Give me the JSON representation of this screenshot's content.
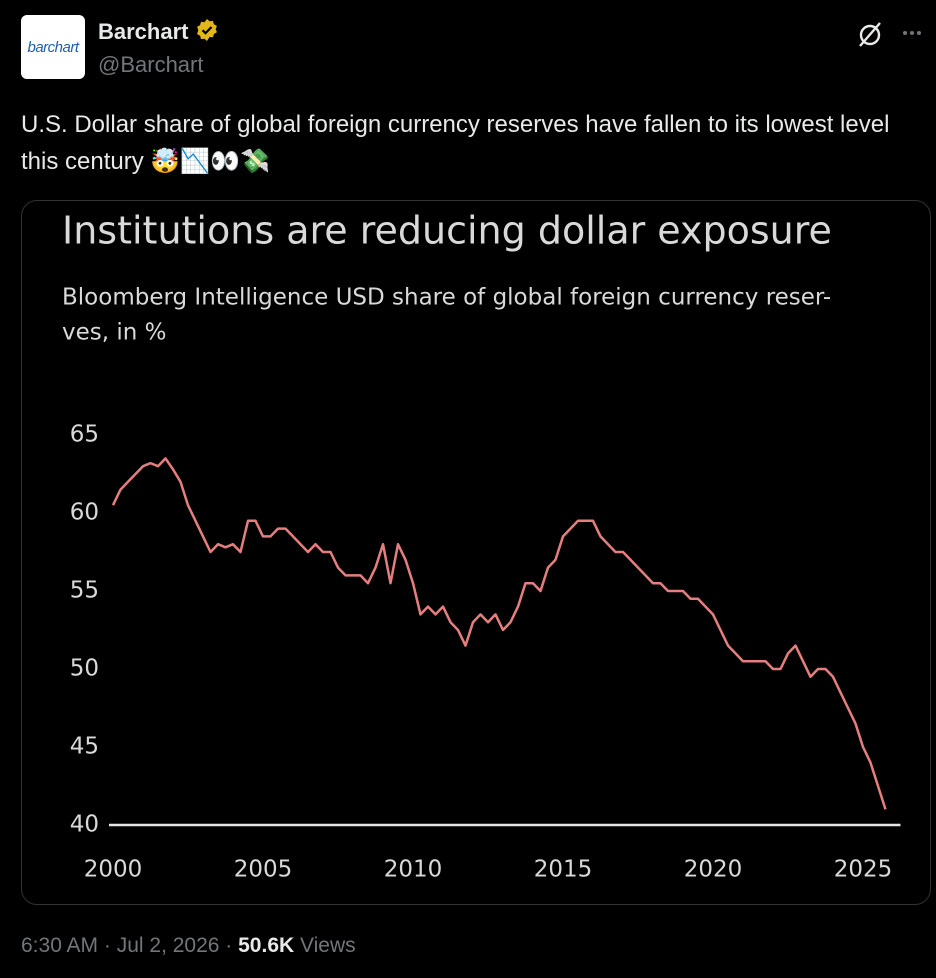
{
  "tweet": {
    "avatar_text": "barchart",
    "name": "Barchart",
    "handle": "@Barchart",
    "text": "U.S. Dollar share of global foreign currency reserves have fallen to its lowest level this century 🤯📉👀💸",
    "timestamp": "6:30 AM · Jul 2, 2026 · ",
    "views_count": "50.6K",
    "views_label": " Views"
  },
  "chart_data": {
    "type": "line",
    "title": "Institutions are reducing dollar exposure",
    "subtitle": [
      "Bloomberg Intelligence USD share of global foreign currency reser-",
      "ves, in %"
    ],
    "x": [
      2000,
      2000.25,
      2000.5,
      2000.75,
      2001,
      2001.25,
      2001.5,
      2001.75,
      2002,
      2002.25,
      2002.5,
      2002.75,
      2003,
      2003.25,
      2003.5,
      2003.75,
      2004,
      2004.25,
      2004.5,
      2004.75,
      2005,
      2005.25,
      2005.5,
      2005.75,
      2006,
      2006.25,
      2006.5,
      2006.75,
      2007,
      2007.25,
      2007.5,
      2007.75,
      2008,
      2008.25,
      2008.5,
      2008.75,
      2009,
      2009.25,
      2009.5,
      2009.75,
      2010,
      2010.25,
      2010.5,
      2010.75,
      2011,
      2011.25,
      2011.5,
      2011.75,
      2012,
      2012.25,
      2012.5,
      2012.75,
      2013,
      2013.25,
      2013.5,
      2013.75,
      2014,
      2014.25,
      2014.5,
      2014.75,
      2015,
      2015.25,
      2015.5,
      2015.75,
      2016,
      2016.25,
      2016.5,
      2016.75,
      2017,
      2017.25,
      2017.5,
      2017.75,
      2018,
      2018.25,
      2018.5,
      2018.75,
      2019,
      2019.25,
      2019.5,
      2019.75,
      2020,
      2020.25,
      2020.5,
      2020.75,
      2021,
      2021.25,
      2021.5,
      2021.75,
      2022,
      2022.25,
      2022.5,
      2022.75,
      2023,
      2023.25,
      2023.5,
      2023.75,
      2024,
      2024.25,
      2024.5,
      2024.75,
      2025,
      2025.25,
      2025.5,
      2025.75
    ],
    "values": [
      60.5,
      61.5,
      62,
      62.5,
      63,
      63.2,
      63,
      63.5,
      62.8,
      62,
      60.5,
      59.5,
      58.5,
      57.5,
      58,
      57.8,
      58,
      57.5,
      59.5,
      59.5,
      58.5,
      58.5,
      59,
      59,
      58.5,
      58,
      57.5,
      58,
      57.5,
      57.5,
      56.5,
      56,
      56,
      56,
      55.5,
      56.5,
      58,
      55.5,
      58,
      57,
      55.5,
      53.5,
      54,
      53.5,
      54,
      53,
      52.5,
      51.5,
      53,
      53.5,
      53,
      53.5,
      52.5,
      53,
      54,
      55.5,
      55.5,
      55,
      56.5,
      57,
      58.5,
      59,
      59.5,
      59.5,
      59.5,
      58.5,
      58,
      57.5,
      57.5,
      57,
      56.5,
      56,
      55.5,
      55.5,
      55,
      55,
      55,
      54.5,
      54.5,
      54,
      53.5,
      52.5,
      51.5,
      51,
      50.5,
      50.5,
      50.5,
      50.5,
      50,
      50,
      51,
      51.5,
      50.5,
      49.5,
      50,
      50,
      49.5,
      48.5,
      47.5,
      46.5,
      45,
      44,
      42.5,
      41
    ],
    "color": "#e57f7f",
    "xlim": [
      2000,
      2026.25
    ],
    "xticks": [
      2000,
      2005,
      2010,
      2015,
      2020,
      2025
    ],
    "ylim": [
      40,
      65
    ],
    "yticks": [
      40,
      45,
      50,
      55,
      60,
      65
    ],
    "grid": false
  }
}
